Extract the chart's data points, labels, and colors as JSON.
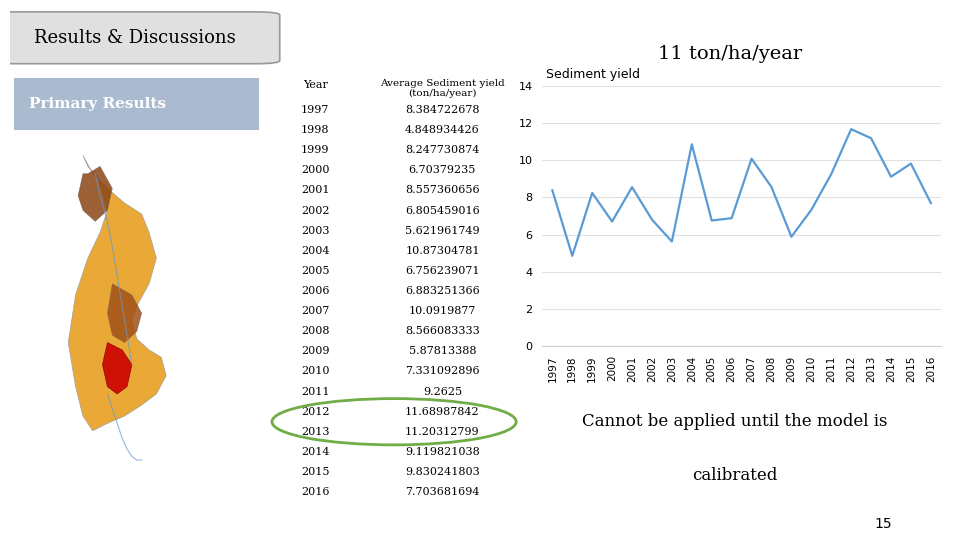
{
  "years": [
    1997,
    1998,
    1999,
    2000,
    2001,
    2002,
    2003,
    2004,
    2005,
    2006,
    2007,
    2008,
    2009,
    2010,
    2011,
    2012,
    2013,
    2014,
    2015,
    2016
  ],
  "values": [
    8.384722678,
    4.848934426,
    8.247730874,
    6.70379235,
    8.557360656,
    6.805459016,
    5.621961749,
    10.87304781,
    6.756239071,
    6.883251366,
    10.0919877,
    8.566083333,
    5.87813388,
    7.331092896,
    9.2625,
    11.68987842,
    11.20312799,
    9.119821038,
    9.830241803,
    7.703681694
  ],
  "value_strings": [
    "8.384722678",
    "4.848934426",
    "8.247730874",
    "6.70379235",
    "8.557360656",
    "6.805459016",
    "5.621961749",
    "10.87304781",
    "6.756239071",
    "6.883251366",
    "10.0919877",
    "8.566083333",
    "5.87813388",
    "7.331092896",
    "9.2625",
    "11.68987842",
    "11.20312799",
    "9.119821038",
    "9.830241803",
    "7.703681694"
  ],
  "line_color": "#5b9bd5",
  "chart_title": "Sediment yield",
  "annotation_text": "11 ton/ha/year",
  "ylabel_values": [
    0,
    2,
    4,
    6,
    8,
    10,
    12,
    14
  ],
  "ylim": [
    0,
    14
  ],
  "background_color": "#ffffff",
  "header_text": "Results & Discussions",
  "primary_results_text": "Primary Results",
  "cannot_text_line1": "Cannot be applied until the model is",
  "cannot_text_line2": "calibrated",
  "page_number": "15",
  "table_row_color_even": "#dce6f1",
  "table_row_color_odd": "#ffffff",
  "table_header_color": "#dce6f1",
  "highlight_years": [
    2012,
    2013
  ],
  "highlight_color": "#70ad47"
}
